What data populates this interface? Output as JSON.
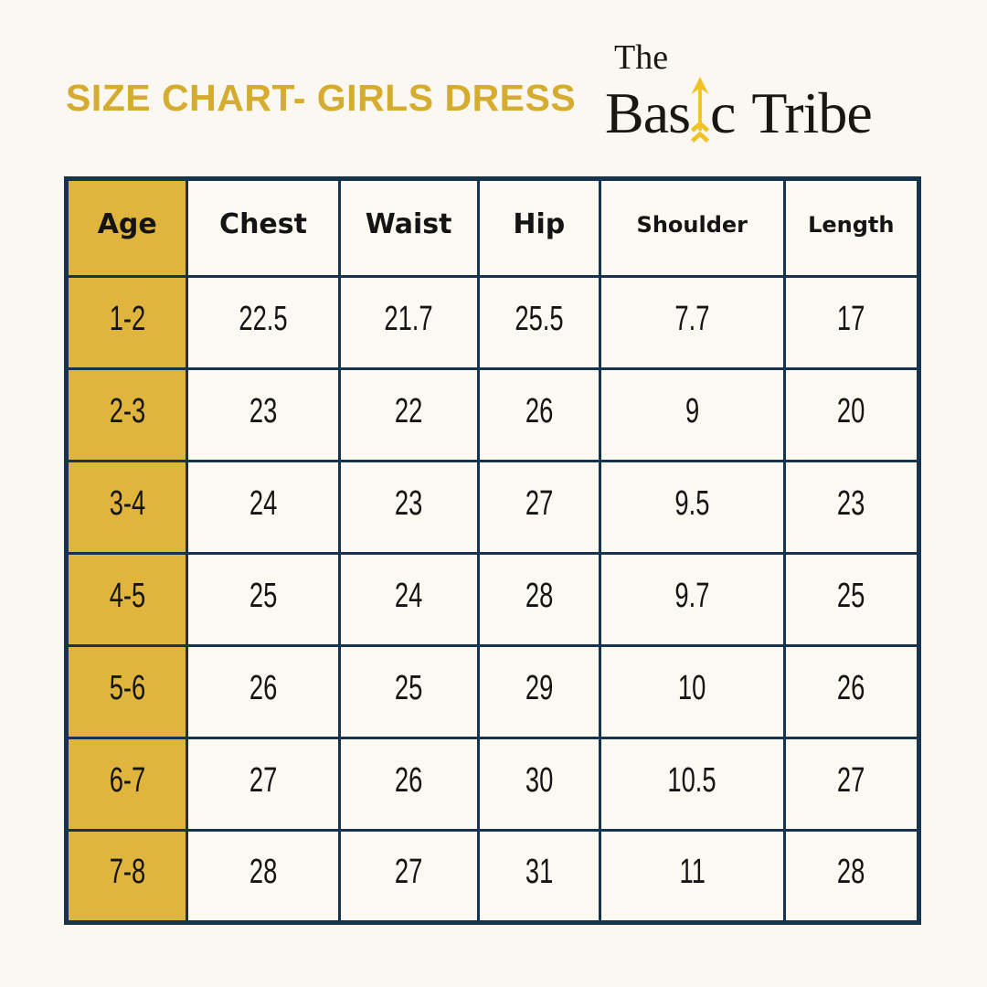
{
  "page": {
    "background": "#FAF8F0"
  },
  "title": {
    "text": "SIZE CHART- GIRLS DRESS",
    "color": "#D5AC30"
  },
  "logo": {
    "the": "The",
    "basic_prefix": "Bas",
    "basic_suffix": "c",
    "tribe": "Tribe",
    "arrow_icon": "up-arrow",
    "arrow_color": "#F0C228",
    "text_color": "#1A1713"
  },
  "table": {
    "border_color": "#17344F",
    "age_column_color": "#E0B53D",
    "columns": [
      "Age",
      "Chest",
      "Waist",
      "Hip",
      "Shoulder",
      "Length"
    ],
    "rows": [
      [
        "1-2",
        "22.5",
        "21.7",
        "25.5",
        "7.7",
        "17"
      ],
      [
        "2-3",
        "23",
        "22",
        "26",
        "9",
        "20"
      ],
      [
        "3-4",
        "24",
        "23",
        "27",
        "9.5",
        "23"
      ],
      [
        "4-5",
        "25",
        "24",
        "28",
        "9.7",
        "25"
      ],
      [
        "5-6",
        "26",
        "25",
        "29",
        "10",
        "26"
      ],
      [
        "6-7",
        "27",
        "26",
        "30",
        "10.5",
        "27"
      ],
      [
        "7-8",
        "28",
        "27",
        "31",
        "11",
        "28"
      ]
    ]
  }
}
